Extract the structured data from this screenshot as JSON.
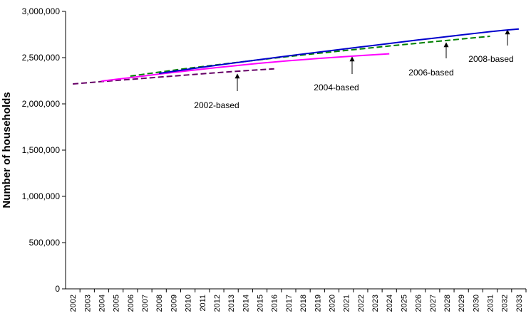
{
  "chart_data": {
    "type": "line",
    "y_label": "Number of households",
    "categories": [
      "2002",
      "2003",
      "2004",
      "2005",
      "2006",
      "2007",
      "2008",
      "2009",
      "2010",
      "2011",
      "2012",
      "2013",
      "2014",
      "2015",
      "2016",
      "2017",
      "2018",
      "2019",
      "2020",
      "2021",
      "2022",
      "2023",
      "2024",
      "2025",
      "2026",
      "2027",
      "2028",
      "2029",
      "2030",
      "2031",
      "2032",
      "2033"
    ],
    "ylim": [
      0,
      3000000
    ],
    "yticks": [
      0,
      {
        "value": 500000,
        "label": "500,000"
      },
      {
        "value": 1000000,
        "label": "1,000,000"
      },
      {
        "value": 1500000,
        "label": "1,500,000"
      },
      {
        "value": 2000000,
        "label": "2,000,000"
      },
      {
        "value": 2500000,
        "label": "2,500,000"
      },
      {
        "value": 3000000,
        "label": "3,000,000"
      }
    ],
    "grid": false,
    "series": [
      {
        "name": "2002-based",
        "color": "#660066",
        "dash": true,
        "values": [
          2215000,
          2228000,
          2241000,
          2253000,
          2265000,
          2277000,
          2289000,
          2301000,
          2313000,
          2325000,
          2337000,
          2348000,
          2359000,
          2369000,
          2379000,
          null,
          null,
          null,
          null,
          null,
          null,
          null,
          null,
          null,
          null,
          null,
          null,
          null,
          null,
          null,
          null,
          null
        ]
      },
      {
        "name": "2004-based",
        "color": "#ff00ff",
        "dash": false,
        "values": [
          null,
          null,
          2246000,
          2265000,
          2284000,
          2303000,
          2322000,
          2340000,
          2358000,
          2375000,
          2392000,
          2408000,
          2424000,
          2439000,
          2453000,
          2466000,
          2478000,
          2490000,
          2501000,
          2512000,
          2522000,
          2532000,
          2541000,
          null,
          null,
          null,
          null,
          null,
          null,
          null,
          null,
          null
        ]
      },
      {
        "name": "2006-based",
        "color": "#008000",
        "dash": true,
        "values": [
          null,
          null,
          null,
          null,
          2300000,
          2322000,
          2343000,
          2364000,
          2384000,
          2403000,
          2422000,
          2441000,
          2459000,
          2477000,
          2495000,
          2512000,
          2529000,
          2546000,
          2562000,
          2578000,
          2594000,
          2610000,
          2626000,
          2641000,
          2656000,
          2671000,
          2686000,
          2701000,
          2716000,
          2731000,
          null,
          null
        ]
      },
      {
        "name": "2008-based",
        "color": "#0000cc",
        "dash": false,
        "values": [
          null,
          null,
          null,
          null,
          null,
          null,
          2330000,
          2352000,
          2374000,
          2396000,
          2417000,
          2438000,
          2459000,
          2479000,
          2499000,
          2519000,
          2539000,
          2558000,
          2577000,
          2596000,
          2615000,
          2634000,
          2653000,
          2672000,
          2691000,
          2709000,
          2727000,
          2745000,
          2763000,
          2781000,
          2796000,
          2810000
        ]
      }
    ]
  }
}
